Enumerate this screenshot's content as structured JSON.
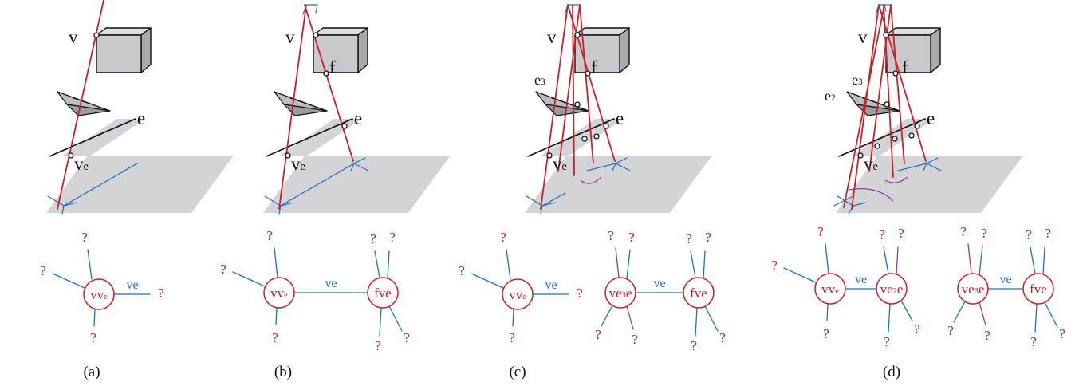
{
  "colors": {
    "red": "#c8202a",
    "blue": "#1f6fc0",
    "purple": "#8a3f9c",
    "ground": "#d4d4d6",
    "box_front": "#c9c9cb",
    "box_top": "#dededf",
    "box_side": "#aaaaac",
    "black": "#111111"
  },
  "panels": [
    {
      "caption": "(a)",
      "scene": {
        "v": "v",
        "ve_main": "v",
        "ve_sub": "e",
        "e": "e",
        "f": "",
        "e2": "",
        "e2_sub": "",
        "e3": "",
        "e3_sub": ""
      },
      "graph": [
        {
          "node": "vv",
          "node_sub": "e",
          "edge": "ve",
          "q1": "?",
          "q2": "?",
          "q3": "?",
          "q4": "?"
        }
      ]
    },
    {
      "caption": "(b)",
      "scene": {
        "v": "v",
        "ve_main": "v",
        "ve_sub": "e",
        "e": "e",
        "f": "f",
        "e2": "",
        "e2_sub": "",
        "e3": "",
        "e3_sub": ""
      },
      "graph": [
        {
          "left": "vv",
          "left_sub": "e",
          "right": "fve",
          "edge": "ve",
          "q": [
            "?",
            "?",
            "?",
            "?",
            "?",
            "?",
            "?",
            "?"
          ]
        }
      ]
    },
    {
      "caption": "(c)",
      "scene": {
        "v": "v",
        "ve_main": "v",
        "ve_sub": "e",
        "e": "e",
        "f": "f",
        "e2": "",
        "e2_sub": "",
        "e3": "e",
        "e3_sub": "3"
      },
      "graph": [
        {
          "node": "vv",
          "node_sub": "e",
          "edge": "ve",
          "q1": "?",
          "q2": "?",
          "q3": "?",
          "q4": "?"
        },
        {
          "left": "ve",
          "left_sub": "3",
          "left_tail": "e",
          "right": "fve",
          "edge": "ve",
          "q": [
            "?",
            "?",
            "?",
            "?",
            "?",
            "?",
            "?",
            "?"
          ]
        }
      ]
    },
    {
      "caption": "(d)",
      "scene": {
        "v": "v",
        "ve_main": "v",
        "ve_sub": "e",
        "e": "e",
        "f": "f",
        "e2": "e",
        "e2_sub": "2",
        "e3": "e",
        "e3_sub": "3"
      },
      "graph": [
        {
          "left": "vv",
          "left_sub": "e",
          "right": "ve",
          "right_sub": "2",
          "right_tail": "e",
          "edge": "ve",
          "q": [
            "?",
            "?",
            "?",
            "?",
            "?",
            "?",
            "?"
          ]
        },
        {
          "left": "ve",
          "left_sub": "3",
          "left_tail": "e",
          "right": "fve",
          "edge": "ve",
          "q": [
            "?",
            "?",
            "?",
            "?",
            "?",
            "?",
            "?",
            "?"
          ]
        }
      ]
    }
  ]
}
